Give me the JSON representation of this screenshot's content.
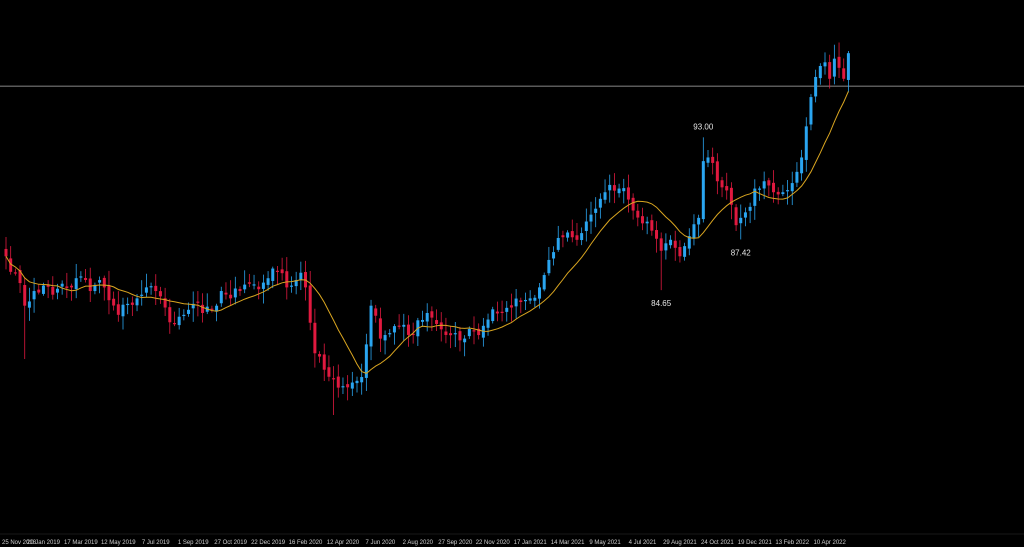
{
  "chart_data": {
    "type": "candlestick",
    "title": "",
    "xlabel": "",
    "ylabel": "",
    "ylim": [
      74.0,
      97.5
    ],
    "grid": false,
    "legend": "none",
    "colors": {
      "background": "#000000",
      "bullish": "#2aa5f0",
      "bearish": "#e0193f",
      "moving_average": "#d9a520",
      "price_line": "#b4b4b4",
      "text": "#cfcfcf"
    },
    "price_line_value": 95.8,
    "x_tick_labels": [
      {
        "label": "25 Nov 2018",
        "index": 0
      },
      {
        "label": "20 Jan 2019",
        "index": 8
      },
      {
        "label": "17 Mar 2019",
        "index": 16
      },
      {
        "label": "12 May 2019",
        "index": 24
      },
      {
        "label": "7 Jul 2019",
        "index": 32
      },
      {
        "label": "1 Sep 2019",
        "index": 40
      },
      {
        "label": "27 Oct 2019",
        "index": 48
      },
      {
        "label": "22 Dec 2019",
        "index": 56
      },
      {
        "label": "16 Feb 2020",
        "index": 64
      },
      {
        "label": "12 Apr 2020",
        "index": 72
      },
      {
        "label": "7 Jun 2020",
        "index": 80
      },
      {
        "label": "2 Aug 2020",
        "index": 88
      },
      {
        "label": "27 Sep 2020",
        "index": 96
      },
      {
        "label": "22 Nov 2020",
        "index": 104
      },
      {
        "label": "17 Jan 2021",
        "index": 112
      },
      {
        "label": "14 Mar 2021",
        "index": 120
      },
      {
        "label": "9 May 2021",
        "index": 128
      },
      {
        "label": "4 Jul 2021",
        "index": 136
      },
      {
        "label": "29 Aug 2021",
        "index": 144
      },
      {
        "label": "24 Oct 2021",
        "index": 152
      },
      {
        "label": "19 Dec 2021",
        "index": 160
      },
      {
        "label": "13 Feb 2022",
        "index": 168
      },
      {
        "label": "10 Apr 2022",
        "index": 176
      }
    ],
    "annotations": [
      {
        "text": "93.00",
        "index": 149,
        "value": 93.0,
        "position": "above"
      },
      {
        "text": "84.65",
        "index": 140,
        "value": 84.65,
        "position": "below"
      },
      {
        "text": "87.42",
        "index": 157,
        "value": 87.42,
        "position": "below"
      }
    ],
    "anchors": [
      [
        0,
        86.5
      ],
      [
        2,
        85.6
      ],
      [
        4,
        83.8
      ],
      [
        6,
        84.6
      ],
      [
        8,
        84.9
      ],
      [
        10,
        84.4
      ],
      [
        12,
        85.0
      ],
      [
        14,
        84.8
      ],
      [
        16,
        85.4
      ],
      [
        18,
        84.6
      ],
      [
        20,
        85.2
      ],
      [
        22,
        84.1
      ],
      [
        24,
        83.3
      ],
      [
        26,
        83.9
      ],
      [
        28,
        84.2
      ],
      [
        30,
        84.8
      ],
      [
        32,
        84.6
      ],
      [
        34,
        83.7
      ],
      [
        36,
        82.8
      ],
      [
        38,
        83.3
      ],
      [
        40,
        83.9
      ],
      [
        42,
        83.4
      ],
      [
        44,
        83.6
      ],
      [
        46,
        84.6
      ],
      [
        48,
        84.2
      ],
      [
        50,
        84.6
      ],
      [
        52,
        85.0
      ],
      [
        54,
        84.7
      ],
      [
        56,
        85.3
      ],
      [
        58,
        85.7
      ],
      [
        60,
        84.8
      ],
      [
        62,
        85.2
      ],
      [
        63,
        85.6
      ],
      [
        64,
        84.8
      ],
      [
        66,
        81.2
      ],
      [
        68,
        80.3
      ],
      [
        70,
        79.8
      ],
      [
        72,
        79.4
      ],
      [
        74,
        79.6
      ],
      [
        76,
        79.9
      ],
      [
        78,
        83.8
      ],
      [
        80,
        82.0
      ],
      [
        82,
        82.3
      ],
      [
        84,
        82.7
      ],
      [
        86,
        82.2
      ],
      [
        88,
        83.0
      ],
      [
        90,
        83.4
      ],
      [
        92,
        82.8
      ],
      [
        94,
        82.2
      ],
      [
        96,
        82.3
      ],
      [
        98,
        82.0
      ],
      [
        100,
        82.4
      ],
      [
        102,
        82.7
      ],
      [
        104,
        83.6
      ],
      [
        106,
        83.4
      ],
      [
        108,
        83.7
      ],
      [
        110,
        84.0
      ],
      [
        112,
        84.2
      ],
      [
        114,
        84.8
      ],
      [
        116,
        86.3
      ],
      [
        118,
        87.5
      ],
      [
        120,
        87.8
      ],
      [
        122,
        87.4
      ],
      [
        124,
        88.4
      ],
      [
        126,
        89.1
      ],
      [
        128,
        90.0
      ],
      [
        129,
        90.4
      ],
      [
        131,
        90.2
      ],
      [
        133,
        89.6
      ],
      [
        134,
        89.0
      ],
      [
        136,
        88.3
      ],
      [
        138,
        87.9
      ],
      [
        140,
        86.8
      ],
      [
        142,
        87.4
      ],
      [
        144,
        86.5
      ],
      [
        146,
        87.6
      ],
      [
        148,
        88.6
      ],
      [
        149,
        91.7
      ],
      [
        150,
        91.9
      ],
      [
        152,
        90.6
      ],
      [
        154,
        90.1
      ],
      [
        156,
        88.2
      ],
      [
        157,
        88.6
      ],
      [
        158,
        88.9
      ],
      [
        159,
        89.2
      ],
      [
        160,
        90.2
      ],
      [
        162,
        90.6
      ],
      [
        164,
        90.0
      ],
      [
        166,
        90.0
      ],
      [
        168,
        90.5
      ],
      [
        170,
        91.9
      ],
      [
        171,
        93.6
      ],
      [
        172,
        95.2
      ],
      [
        173,
        96.3
      ],
      [
        174,
        96.9
      ],
      [
        175,
        97.1
      ],
      [
        176,
        96.2
      ],
      [
        177,
        97.3
      ],
      [
        178,
        96.8
      ],
      [
        179,
        96.2
      ],
      [
        180,
        97.6
      ]
    ],
    "data_labels": [
      {
        "index": 149,
        "value": 93.0,
        "text": "93.00"
      },
      {
        "index": 140,
        "value": 84.65,
        "text": "84.65"
      },
      {
        "index": 157,
        "value": 87.42,
        "text": "87.42"
      }
    ]
  }
}
